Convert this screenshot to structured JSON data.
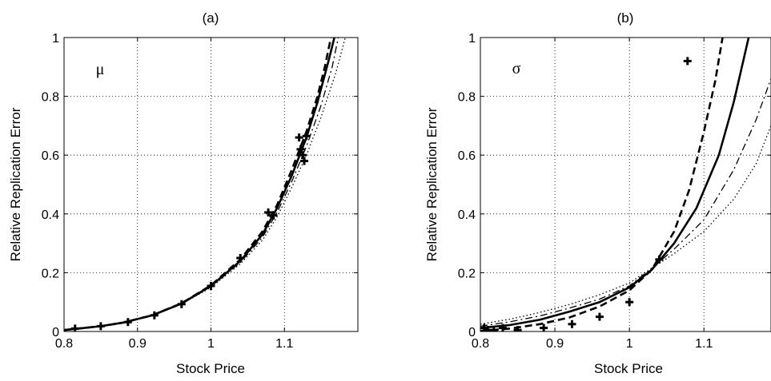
{
  "chart_data": [
    {
      "type": "line",
      "title": "(a)",
      "annotation": "μ",
      "xlabel": "Stock Price",
      "ylabel": "Relative Replication Error",
      "xlim": [
        0.8,
        1.2
      ],
      "ylim": [
        0,
        1
      ],
      "xticks": [
        0.8,
        0.9,
        1,
        1.1
      ],
      "xtick_labels": [
        "0.8",
        "0.9",
        "1",
        "1.1"
      ],
      "yticks": [
        0,
        0.2,
        0.4,
        0.6,
        0.8,
        1
      ],
      "ytick_labels": [
        "0",
        "0.2",
        "0.4",
        "0.6",
        "0.8",
        "1"
      ],
      "grid": true,
      "series": [
        {
          "style": "solid",
          "color": "#000000",
          "x": [
            0.8,
            0.82,
            0.85,
            0.88,
            0.92,
            0.96,
            1.0,
            1.04,
            1.07,
            1.09,
            1.11,
            1.13,
            1.145,
            1.16,
            1.17
          ],
          "y": [
            0.005,
            0.01,
            0.018,
            0.03,
            0.055,
            0.095,
            0.155,
            0.24,
            0.33,
            0.42,
            0.53,
            0.66,
            0.78,
            0.92,
            1.02
          ]
        },
        {
          "style": "dashed",
          "color": "#000000",
          "x": [
            0.8,
            0.82,
            0.85,
            0.88,
            0.92,
            0.96,
            1.0,
            1.04,
            1.07,
            1.09,
            1.11,
            1.13,
            1.145,
            1.155,
            1.165
          ],
          "y": [
            0.005,
            0.01,
            0.018,
            0.03,
            0.055,
            0.096,
            0.157,
            0.245,
            0.34,
            0.43,
            0.55,
            0.68,
            0.8,
            0.9,
            1.02
          ]
        },
        {
          "style": "dashdot",
          "color": "#000000",
          "x": [
            0.8,
            0.82,
            0.85,
            0.88,
            0.92,
            0.96,
            1.0,
            1.04,
            1.07,
            1.09,
            1.11,
            1.13,
            1.15,
            1.165,
            1.175
          ],
          "y": [
            0.005,
            0.01,
            0.017,
            0.03,
            0.054,
            0.094,
            0.152,
            0.235,
            0.32,
            0.405,
            0.51,
            0.63,
            0.77,
            0.9,
            1.02
          ]
        },
        {
          "style": "dotted",
          "color": "#000000",
          "x": [
            0.8,
            0.82,
            0.85,
            0.88,
            0.92,
            0.96,
            1.0,
            1.04,
            1.07,
            1.09,
            1.11,
            1.13,
            1.15,
            1.17,
            1.185
          ],
          "y": [
            0.005,
            0.01,
            0.017,
            0.029,
            0.053,
            0.093,
            0.15,
            0.23,
            0.31,
            0.39,
            0.49,
            0.6,
            0.73,
            0.88,
            1.02
          ]
        },
        {
          "style": "markers",
          "marker": "plus",
          "color": "#000000",
          "x": [
            0.815,
            0.85,
            0.887,
            0.923,
            0.96,
            1.0,
            1.04,
            1.078,
            1.085,
            1.12,
            1.122,
            1.125,
            1.127,
            1.13
          ],
          "y": [
            0.01,
            0.018,
            0.032,
            0.055,
            0.093,
            0.155,
            0.25,
            0.405,
            0.395,
            0.66,
            0.62,
            0.6,
            0.58,
            0.665
          ]
        }
      ]
    },
    {
      "type": "line",
      "title": "(b)",
      "annotation": "σ",
      "xlabel": "Stock Price",
      "ylabel": "Relative Replication Error",
      "xlim": [
        0.8,
        1.19
      ],
      "ylim": [
        0,
        1
      ],
      "xticks": [
        0.8,
        0.9,
        1,
        1.1
      ],
      "xtick_labels": [
        "0.8",
        "0.9",
        "1",
        "1.1"
      ],
      "yticks": [
        0,
        0.2,
        0.4,
        0.6,
        0.8,
        1
      ],
      "ytick_labels": [
        "0",
        "0.2",
        "0.4",
        "0.6",
        "0.8",
        "1"
      ],
      "grid": true,
      "series": [
        {
          "style": "solid",
          "color": "#000000",
          "x": [
            0.8,
            0.84,
            0.88,
            0.92,
            0.96,
            1.0,
            1.03,
            1.06,
            1.09,
            1.12,
            1.14,
            1.16
          ],
          "y": [
            0.012,
            0.022,
            0.04,
            0.068,
            0.1,
            0.15,
            0.21,
            0.3,
            0.42,
            0.6,
            0.78,
            1.0
          ]
        },
        {
          "style": "dashed",
          "color": "#000000",
          "x": [
            0.8,
            0.84,
            0.88,
            0.92,
            0.96,
            1.0,
            1.03,
            1.06,
            1.08,
            1.1,
            1.115,
            1.125
          ],
          "y": [
            0.002,
            0.01,
            0.025,
            0.048,
            0.085,
            0.14,
            0.21,
            0.34,
            0.48,
            0.68,
            0.85,
            1.0
          ]
        },
        {
          "style": "dashdot",
          "color": "#000000",
          "x": [
            0.8,
            0.84,
            0.88,
            0.92,
            0.96,
            1.0,
            1.03,
            1.06,
            1.1,
            1.14,
            1.17,
            1.19
          ],
          "y": [
            0.018,
            0.033,
            0.053,
            0.08,
            0.11,
            0.155,
            0.215,
            0.28,
            0.38,
            0.55,
            0.72,
            0.86
          ]
        },
        {
          "style": "dotted",
          "color": "#000000",
          "x": [
            0.8,
            0.84,
            0.88,
            0.92,
            0.96,
            1.0,
            1.03,
            1.06,
            1.1,
            1.14,
            1.17,
            1.19
          ],
          "y": [
            0.025,
            0.042,
            0.065,
            0.092,
            0.125,
            0.165,
            0.215,
            0.265,
            0.34,
            0.45,
            0.57,
            0.7
          ]
        },
        {
          "style": "markers",
          "marker": "plus",
          "color": "#000000",
          "x": [
            0.805,
            0.81,
            0.818,
            0.83,
            0.85,
            0.885,
            0.923,
            0.96,
            1.0,
            1.04,
            1.078
          ],
          "y": [
            0.012,
            0.005,
            0.0,
            0.012,
            0.005,
            0.012,
            0.025,
            0.05,
            0.1,
            0.245,
            0.92
          ]
        }
      ]
    }
  ]
}
